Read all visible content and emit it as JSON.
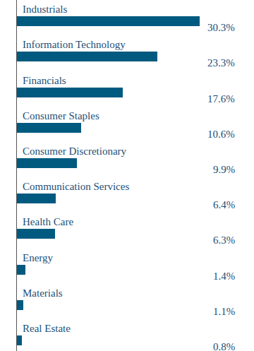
{
  "chart_data": {
    "type": "bar",
    "orientation": "horizontal",
    "categories": [
      "Industrials",
      "Information Technology",
      "Financials",
      "Consumer Staples",
      "Consumer Discretionary",
      "Communication Services",
      "Health Care",
      "Energy",
      "Materials",
      "Real Estate"
    ],
    "values": [
      30.3,
      23.3,
      17.6,
      10.6,
      9.9,
      6.4,
      6.3,
      1.4,
      1.1,
      0.8
    ],
    "value_labels": [
      "30.3%",
      "23.3%",
      "17.6%",
      "10.6%",
      "9.9%",
      "6.4%",
      "6.3%",
      "1.4%",
      "1.1%",
      "0.8%"
    ],
    "data_labels": true,
    "color": "#005a80",
    "xlim": [
      0,
      30.3
    ],
    "tick_labels": false,
    "grid": false
  }
}
